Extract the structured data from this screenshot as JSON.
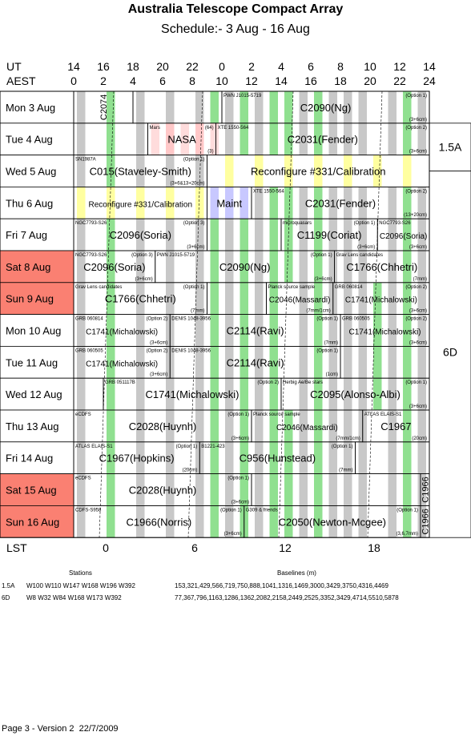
{
  "title": "Australia Telescope Compact Array",
  "subtitle": "Schedule:- 3  Aug - 16 Aug",
  "axis": {
    "ut_label": "UT",
    "aest_label": "AEST",
    "lst_label": "LST",
    "ut_ticks": [
      "14",
      "16",
      "18",
      "20",
      "22",
      "0",
      "2",
      "4",
      "6",
      "8",
      "10",
      "12",
      "14"
    ],
    "aest_ticks": [
      "0",
      "2",
      "4",
      "6",
      "8",
      "10",
      "12",
      "14",
      "16",
      "18",
      "20",
      "22",
      "24"
    ],
    "lst_ticks": [
      "0",
      "6",
      "12",
      "18"
    ]
  },
  "days": [
    {
      "label": "Mon   3  Aug",
      "weekend": false
    },
    {
      "label": "Tue   4  Aug",
      "weekend": false
    },
    {
      "label": "Wed   5  Aug",
      "weekend": false
    },
    {
      "label": "Thu   6  Aug",
      "weekend": false
    },
    {
      "label": "Fri    7  Aug",
      "weekend": false
    },
    {
      "label": "Sat   8  Aug",
      "weekend": true
    },
    {
      "label": "Sun   9  Aug",
      "weekend": true
    },
    {
      "label": "Mon  10  Aug",
      "weekend": false
    },
    {
      "label": "Tue  11  Aug",
      "weekend": false
    },
    {
      "label": "Wed  12  Aug",
      "weekend": false
    },
    {
      "label": "Thu  13  Aug",
      "weekend": false
    },
    {
      "label": "Fri   14  Aug",
      "weekend": false
    },
    {
      "label": "Sat   15  Aug",
      "weekend": true
    },
    {
      "label": "Sun   16  Aug",
      "weekend": true
    }
  ],
  "configs": [
    {
      "label": "1.5A"
    },
    {
      "label": "6D"
    }
  ],
  "colors": {
    "grey": "#c8c8c8",
    "green": "#90e090",
    "yellow": "#ffffa0",
    "pink": "#ffc8c8",
    "blue": "#c8c8ff",
    "weekend": "#fa8072"
  },
  "blocks": [
    {
      "row": 0,
      "start": 0,
      "end": 4,
      "main": "C2074",
      "vertical": true,
      "tl": "",
      "tr": "",
      "br": ""
    },
    {
      "row": 0,
      "start": 4,
      "end": 10,
      "main": "",
      "tl": "",
      "tr": "",
      "br": ""
    },
    {
      "row": 0,
      "start": 10,
      "end": 24,
      "main": "C2090(Ng)",
      "tl": "PWN J1015-5719",
      "tr": "(Option 1)",
      "br": "(3+6cm)"
    },
    {
      "row": 1,
      "start": 0,
      "end": 5,
      "main": "",
      "tl": "",
      "tr": "",
      "br": ""
    },
    {
      "row": 1,
      "start": 5,
      "end": 9.6,
      "main": "NASA",
      "tl": "Mars",
      "tr": "(64)",
      "br": "(3)"
    },
    {
      "row": 1,
      "start": 9.6,
      "end": 24,
      "main": "C2031(Fender)",
      "tl": "XTE 1550-564",
      "tr": "(Option 2)",
      "br": "(3+6cm)"
    },
    {
      "row": 2,
      "start": 0,
      "end": 9,
      "main": "C015(Staveley-Smith)",
      "tl": "SN1987A",
      "tr": "(Option 1)",
      "br": "(3+6&13+20cm)"
    },
    {
      "row": 2,
      "start": 9,
      "end": 24,
      "main": "Reconfigure #331/Calibration",
      "tl": "",
      "tr": "",
      "br": ""
    },
    {
      "row": 3,
      "start": 0,
      "end": 9,
      "main": "Reconfigure #331/Calibration",
      "small_main": true,
      "tl": "",
      "tr": "",
      "br": ""
    },
    {
      "row": 3,
      "start": 9,
      "end": 12,
      "main": "Maint",
      "tl": "",
      "tr": "",
      "br": ""
    },
    {
      "row": 3,
      "start": 12,
      "end": 24,
      "main": "C2031(Fender)",
      "tl": "XTE 1550-564",
      "tr": "(Option 2)",
      "br": "(13+20cm)"
    },
    {
      "row": 4,
      "start": 0,
      "end": 9,
      "main": "C2096(Soria)",
      "tl": "NGC7793-S26",
      "tr": "(Option 3)",
      "br": "(3+6cm)"
    },
    {
      "row": 4,
      "start": 9,
      "end": 14,
      "main": "",
      "tl": "",
      "tr": "",
      "br": ""
    },
    {
      "row": 4,
      "start": 14,
      "end": 20.5,
      "main": "C1199(Coriat)",
      "tl": "microquasars",
      "tr": "(Option 1)",
      "br": "(3+6cm)"
    },
    {
      "row": 4,
      "start": 20.5,
      "end": 24,
      "main": "C2096(Soria)",
      "small_main": true,
      "tl": "NGC7793-S26",
      "tr": "",
      "br": "(3+6cm)"
    },
    {
      "row": 5,
      "start": 0,
      "end": 5.5,
      "main": "C2096(Soria)",
      "tl": "NGC7793-S26",
      "tr": "(Option 3)",
      "br": "(3+6cm)"
    },
    {
      "row": 5,
      "start": 5.5,
      "end": 17.6,
      "main": "C2090(Ng)",
      "tl": "PWN J1015-5719",
      "tr": "(Option 1)",
      "br": "(3+6cm)"
    },
    {
      "row": 5,
      "start": 17.6,
      "end": 24,
      "main": "C1766(Chhetri)",
      "tl": "Grav Lens candidates",
      "tr": "",
      "br": "(7mm)"
    },
    {
      "row": 6,
      "start": 0,
      "end": 9,
      "main": "C1766(Chhetri)",
      "tl": "Grav Lens candidates",
      "tr": "(Option 1)",
      "br": "(7mm)"
    },
    {
      "row": 6,
      "start": 9,
      "end": 13,
      "main": "",
      "tl": "",
      "tr": "",
      "br": ""
    },
    {
      "row": 6,
      "start": 13,
      "end": 17.5,
      "main": "C2046(Massardi)",
      "small_main": true,
      "tl": "Planck source sample",
      "tr": "",
      "br": "(7mm/1cm)"
    },
    {
      "row": 6,
      "start": 17.5,
      "end": 24,
      "main": "C1741(Michalowski)",
      "small_main": true,
      "tl": "GRB 060814",
      "tr": "(Option 2)",
      "br": "(3+6cm)"
    },
    {
      "row": 7,
      "start": 0,
      "end": 6.5,
      "main": "C1741(Michalowski)",
      "small_main": true,
      "tl": "GRB 060814",
      "tr": "(Option 2)",
      "br": "(3+6cm)"
    },
    {
      "row": 7,
      "start": 6.5,
      "end": 18,
      "main": "C2114(Ravi)",
      "tl": "DENIS 1048-3956",
      "tr": "(Option 1)",
      "br": "(7mm)"
    },
    {
      "row": 7,
      "start": 18,
      "end": 24,
      "main": "C1741(Michalowski)",
      "small_main": true,
      "tl": "GRB 060505",
      "tr": "(Option 2)",
      "br": "(3+6cm)"
    },
    {
      "row": 8,
      "start": 0,
      "end": 6.5,
      "main": "C1741(Michalowski)",
      "small_main": true,
      "tl": "GRB 060505",
      "tr": "(Option 2)",
      "br": "(3+6cm)"
    },
    {
      "row": 8,
      "start": 6.5,
      "end": 18,
      "main": "C2114(Ravi)",
      "tl": "DENIS 1048-3956",
      "tr": "(Option 1)",
      "br": "(1cm)"
    },
    {
      "row": 8,
      "start": 18,
      "end": 24,
      "main": "",
      "tl": "",
      "tr": "",
      "br": ""
    },
    {
      "row": 9,
      "start": 0,
      "end": 2,
      "main": "",
      "tl": "",
      "tr": "",
      "br": ""
    },
    {
      "row": 9,
      "start": 2,
      "end": 14,
      "main": "C1741(Michalowski)",
      "tl": "GRB 051117B",
      "tr": "(Option 2)",
      "br": ""
    },
    {
      "row": 9,
      "start": 14,
      "end": 24,
      "main": "C2095(Alonso-Albi)",
      "tl": "Herbig Ae/Be stars",
      "tr": "(Option 1)",
      "br": "(3+6cm)"
    },
    {
      "row": 10,
      "start": 0,
      "end": 12,
      "main": "C2028(Huynh)",
      "tl": "eCDFS",
      "tr": "(Option 1)",
      "br": "(3+6cm)"
    },
    {
      "row": 10,
      "start": 12,
      "end": 19.5,
      "main": "C2046(Massardi)",
      "small_main": true,
      "tl": "Planck source sample",
      "tr": "",
      "br": "(7mm/1cm)"
    },
    {
      "row": 10,
      "start": 19.5,
      "end": 24,
      "main": "C1967",
      "tl": "ATLAS ELAIS-S1",
      "tr": "",
      "br": "(20cm)"
    },
    {
      "row": 11,
      "start": 0,
      "end": 8.5,
      "main": "C1967(Hopkins)",
      "tl": "ATLAS ELAIS-S1",
      "tr": "(Option 1)",
      "br": "(20cm)"
    },
    {
      "row": 11,
      "start": 8.5,
      "end": 19,
      "main": "C956(Hunstead)",
      "tl": "B1221-423",
      "tr": "(Option 1)",
      "br": "(7mm)"
    },
    {
      "row": 11,
      "start": 19,
      "end": 24,
      "main": "",
      "tl": "",
      "tr": "",
      "br": ""
    },
    {
      "row": 12,
      "start": 0,
      "end": 12,
      "main": "C2028(Huynh)",
      "tl": "eCDFS",
      "tr": "(Option 1)",
      "br": "(3+6cm)"
    },
    {
      "row": 12,
      "start": 12,
      "end": 23.4,
      "main": "",
      "tl": "",
      "tr": "",
      "br": ""
    },
    {
      "row": 12,
      "start": 23.4,
      "end": 24,
      "main": "C1966",
      "vertical": true,
      "tl": "",
      "tr": "",
      "br": ""
    },
    {
      "row": 13,
      "start": 0,
      "end": 11.5,
      "main": "C1966(Norris)",
      "tl": "CDFS-S958",
      "tr": "(Option 1)",
      "br": "(3+6cm)"
    },
    {
      "row": 13,
      "start": 11.5,
      "end": 23.4,
      "main": "C2050(Newton-Mcgee)",
      "tl": "G309 & friends",
      "tr": "(Option 1)",
      "br": "(3,6,7mm)"
    },
    {
      "row": 13,
      "start": 23.4,
      "end": 24,
      "main": "C1966",
      "vertical": true,
      "tl": "",
      "tr": "",
      "br": ""
    }
  ],
  "stations": {
    "header_left": "Stations",
    "header_right": "Baselines (m)",
    "rows": [
      {
        "config": "1.5A",
        "stations": "W100 W110 W147 W168 W196 W392",
        "baselines": "153,321,429,566,719,750,888,1041,1316,1469,3000,3429,3750,4316,4469"
      },
      {
        "config": "6D",
        "stations": "W8 W32 W84 W168 W173 W392",
        "baselines": "77,367,796,1163,1286,1362,2082,2158,2449,2525,3352,3429,4714,5510,5878"
      }
    ]
  },
  "footer": "Page 3 - Version 2  22/7/2009"
}
